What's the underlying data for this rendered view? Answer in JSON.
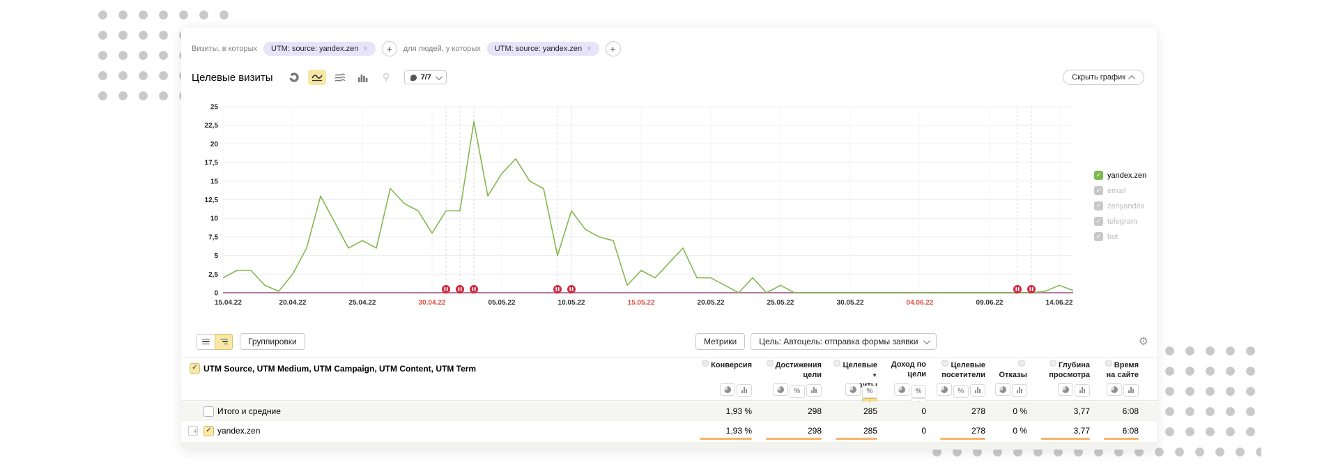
{
  "filters": {
    "visits_label": "Визиты, в которых",
    "people_label": "для людей, у которых",
    "chips": [
      {
        "label": "UTM: source: yandex.zen",
        "close_icon": "×"
      },
      {
        "label": "UTM: source: yandex.zen",
        "close_icon": "×"
      }
    ],
    "add_icon": "+"
  },
  "chart_header": {
    "title": "Целевые визиты",
    "chart_type_icons": [
      "donut-chart-icon",
      "line-chart-icon",
      "stacked-area-icon",
      "bar-chart-icon",
      "map-pin-icon"
    ],
    "selected_chart_type": "line",
    "segments_selector": "7/7",
    "hide_chart_button": "Скрыть график"
  },
  "legend": {
    "items": [
      {
        "label": "yandex.zen",
        "active": true
      },
      {
        "label": "email",
        "active": false
      },
      {
        "label": "zenyandex",
        "active": false
      },
      {
        "label": "telegram",
        "active": false
      },
      {
        "label": "bot",
        "active": false
      }
    ],
    "active_color": "#7cb94e",
    "inactive_color": "#c8c8c8",
    "inactive_text": "#bcbcbc"
  },
  "chart_data": {
    "type": "line",
    "title": "Целевые визиты",
    "x_start_date": "15.04.22",
    "x_end_date": "14.06.22",
    "ylim": [
      0,
      25
    ],
    "grid": true,
    "legend_position": "right",
    "series": [
      {
        "name": "yandex.zen",
        "color": "#82b84e",
        "values": [
          2,
          3,
          3,
          1,
          0.2,
          2.5,
          6,
          13,
          9.5,
          6,
          7,
          6,
          14,
          12,
          11,
          8,
          11,
          11,
          23,
          13,
          16,
          18,
          15,
          14,
          5,
          11,
          8.5,
          7.5,
          7,
          1,
          3,
          2,
          4,
          6,
          2,
          2,
          1,
          0,
          2,
          0,
          1,
          0,
          0,
          0,
          0,
          0,
          0,
          0,
          0,
          0,
          0,
          0,
          0,
          0,
          0,
          0,
          0,
          0,
          0,
          0.2,
          1,
          0.3
        ]
      }
    ],
    "flat_zero_series": {
      "color": "#b1799e",
      "note": "remaining segments flat at 0"
    },
    "y_ticks": [
      {
        "value": 0,
        "label": "0"
      },
      {
        "value": 2.5,
        "label": "2,5"
      },
      {
        "value": 5,
        "label": "5"
      },
      {
        "value": 7.5,
        "label": "7,5"
      },
      {
        "value": 10,
        "label": "10"
      },
      {
        "value": 12.5,
        "label": "12,5"
      },
      {
        "value": 15,
        "label": "15"
      },
      {
        "value": 17.5,
        "label": "17,5"
      },
      {
        "value": 20,
        "label": "20"
      },
      {
        "value": 22.5,
        "label": "22,5"
      },
      {
        "value": 25,
        "label": "25"
      }
    ],
    "x_ticks": [
      {
        "day_index": 0,
        "label": "15.04.22",
        "red": false
      },
      {
        "day_index": 5,
        "label": "20.04.22",
        "red": false
      },
      {
        "day_index": 10,
        "label": "25.04.22",
        "red": false
      },
      {
        "day_index": 15,
        "label": "30.04.22",
        "red": true
      },
      {
        "day_index": 20,
        "label": "05.05.22",
        "red": false
      },
      {
        "day_index": 25,
        "label": "10.05.22",
        "red": false
      },
      {
        "day_index": 30,
        "label": "15.05.22",
        "red": true
      },
      {
        "day_index": 35,
        "label": "20.05.22",
        "red": false
      },
      {
        "day_index": 40,
        "label": "25.05.22",
        "red": false
      },
      {
        "day_index": 45,
        "label": "30.05.22",
        "red": false
      },
      {
        "day_index": 50,
        "label": "04.06.22",
        "red": true
      },
      {
        "day_index": 55,
        "label": "09.06.22",
        "red": false
      },
      {
        "day_index": 60,
        "label": "14.06.22",
        "red": false
      }
    ],
    "label_color": "#333333",
    "red_label_color": "#d94f43",
    "annotations": {
      "color": "#d2273e",
      "day_indices": [
        16,
        17,
        18,
        24,
        25,
        57,
        58
      ]
    }
  },
  "table": {
    "view_toggle": {
      "list_icon": "list-view-icon",
      "tree_icon": "tree-view-icon",
      "active": "tree"
    },
    "groupings_button": "Группировки",
    "metrics_button": "Метрики",
    "goal_selector": "Цель: Автоцель: отправка формы заявки",
    "dimension_header": "UTM Source, UTM Medium, UTM Campaign, UTM Content, UTM Term",
    "columns": [
      {
        "line1": "Конверсия",
        "line2": "",
        "help": true,
        "sort": false,
        "buttons": [
          "pie",
          "bar"
        ],
        "active_button": -1
      },
      {
        "line1": "Достижения",
        "line2": "цели",
        "help": true,
        "sort": false,
        "buttons": [
          "pie",
          "percent",
          "bar"
        ],
        "active_button": -1
      },
      {
        "line1": "Целевые",
        "line2": "визиты",
        "help": true,
        "sort": true,
        "buttons": [
          "pie",
          "percent",
          "bar"
        ],
        "active_button": 2
      },
      {
        "line1": "Доход по",
        "line2": "цели",
        "help": false,
        "sort": false,
        "buttons": [
          "pie",
          "percent",
          "bar"
        ],
        "active_button": -1
      },
      {
        "line1": "Целевые",
        "line2": "посетители",
        "help": true,
        "sort": false,
        "buttons": [
          "pie",
          "percent",
          "bar"
        ],
        "active_button": -1
      },
      {
        "line1": "Отказы",
        "line2": "",
        "help": true,
        "sort": false,
        "buttons": [
          "pie",
          "bar"
        ],
        "active_button": -1
      },
      {
        "line1": "Глубина",
        "line2": "просмотра",
        "help": true,
        "sort": false,
        "buttons": [
          "pie",
          "bar"
        ],
        "active_button": -1
      },
      {
        "line1": "Время",
        "line2": "на сайте",
        "help": true,
        "sort": false,
        "buttons": [
          "pie",
          "bar"
        ],
        "active_button": -1
      }
    ],
    "rows": [
      {
        "label": "Итого и средние",
        "checked": false,
        "expandable": false,
        "values": [
          "1,93 %",
          "298",
          "285",
          "0",
          "278",
          "0 %",
          "3,77",
          "6:08"
        ],
        "underline": [
          false,
          false,
          false,
          false,
          false,
          false,
          false,
          false
        ]
      },
      {
        "label": "yandex.zen",
        "checked": true,
        "expandable": true,
        "values": [
          "1,93 %",
          "298",
          "285",
          "0",
          "278",
          "0 %",
          "3,77",
          "6:08"
        ],
        "underline": [
          true,
          true,
          true,
          false,
          true,
          false,
          true,
          true
        ]
      }
    ],
    "underline_color": "#f5b36b"
  }
}
